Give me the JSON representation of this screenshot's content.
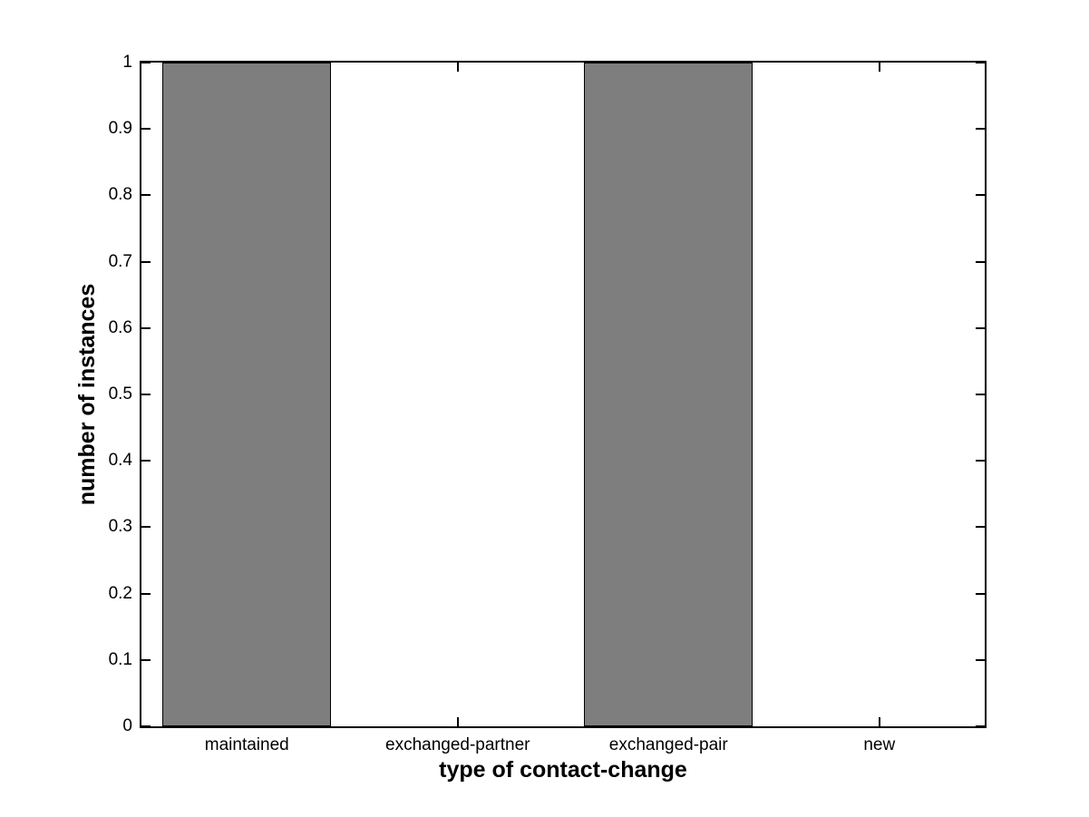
{
  "figure": {
    "background_color": "#ffffff",
    "axis_color": "#000000"
  },
  "chart_data": {
    "type": "bar",
    "title": "",
    "categories": [
      "maintained",
      "exchanged-partner",
      "exchanged-pair",
      "new"
    ],
    "values": [
      1,
      0,
      1,
      0
    ],
    "xlabel": "type of contact-change",
    "ylabel": "number of instances",
    "ylim": [
      0,
      1
    ],
    "ytick_values": [
      0,
      0.1,
      0.2,
      0.3,
      0.4,
      0.5,
      0.6,
      0.7,
      0.8,
      0.9,
      1
    ],
    "ytick_labels": [
      "0",
      "0.1",
      "0.2",
      "0.3",
      "0.4",
      "0.5",
      "0.6",
      "0.7",
      "0.8",
      "0.9",
      "1"
    ],
    "bar_width_fraction": 0.8,
    "bar_fill_color": "#7e7e7e",
    "bar_edge_color": "#000000",
    "grid": false,
    "legend": null
  }
}
